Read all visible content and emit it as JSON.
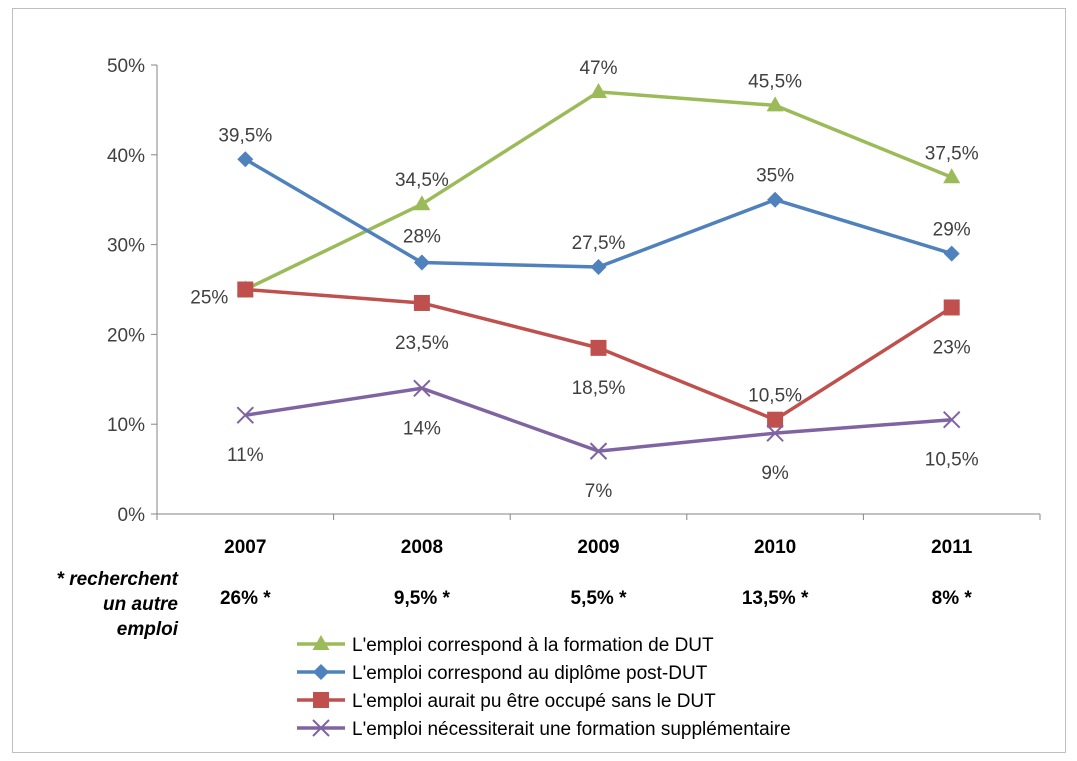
{
  "chart_data": {
    "type": "line",
    "categories": [
      "2007",
      "2008",
      "2009",
      "2010",
      "2011"
    ],
    "ylim": [
      0,
      50
    ],
    "y_ticks": [
      "0%",
      "10%",
      "20%",
      "30%",
      "40%",
      "50%"
    ],
    "y_unit": "percent",
    "grid": false,
    "legend_position": "bottom",
    "series": [
      {
        "name": "L'emploi correspond à la formation de DUT",
        "values": [
          25,
          34.5,
          47,
          45.5,
          37.5
        ],
        "labels": [
          "25%",
          "34,5%",
          "47%",
          "45,5%",
          "37,5%"
        ],
        "color": "#9bbb59",
        "marker": "triangle"
      },
      {
        "name": "L'emploi correspond au diplôme post-DUT",
        "values": [
          39.5,
          28,
          27.5,
          35,
          29
        ],
        "labels": [
          "39,5%",
          "28%",
          "27,5%",
          "35%",
          "29%"
        ],
        "color": "#4f81bd",
        "marker": "diamond"
      },
      {
        "name": "L'emploi aurait pu être occupé sans le DUT",
        "values": [
          25,
          23.5,
          18.5,
          10.5,
          23
        ],
        "labels": [
          "25%",
          "23,5%",
          "18,5%",
          "10,5%",
          "23%"
        ],
        "color": "#c0504d",
        "marker": "square"
      },
      {
        "name": "L'emploi nécessiterait une formation supplémentaire",
        "values": [
          11,
          14,
          7,
          9,
          10.5
        ],
        "labels": [
          "11%",
          "14%",
          "7%",
          "9%",
          "10,5%"
        ],
        "color": "#8064a2",
        "marker": "x"
      }
    ]
  },
  "footnote": {
    "label_lines": [
      "* recherchent",
      "un autre",
      "emploi"
    ],
    "values": [
      "26% *",
      "9,5% *",
      "5,5% *",
      "13,5% *",
      "8% *"
    ]
  }
}
